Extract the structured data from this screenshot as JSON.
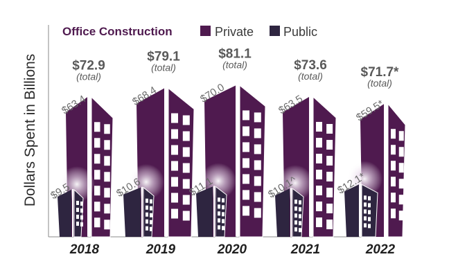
{
  "chart_data": {
    "type": "bar",
    "title": "Office Construction",
    "xlabel": "",
    "ylabel": "Dollars Spent in Billions",
    "ylim": [
      0,
      85
    ],
    "grid": false,
    "legend": {
      "placement": "top",
      "entries": [
        {
          "name": "Private",
          "color": "#4f1a4f"
        },
        {
          "name": "Public",
          "color": "#2e2540"
        }
      ]
    },
    "categories": [
      "2018",
      "2019",
      "2020",
      "2021",
      "2022"
    ],
    "series": [
      {
        "name": "Private",
        "color": "#4f1a4f",
        "values": [
          63.4,
          68.4,
          70.0,
          63.5,
          59.5
        ],
        "labels": [
          "$63.4",
          "$68.4",
          "$70.0",
          "$63.5",
          "$59.5*"
        ]
      },
      {
        "name": "Public",
        "color": "#2e2540",
        "values": [
          9.5,
          10.6,
          11.1,
          10.1,
          12.1
        ],
        "labels": [
          "$9.5",
          "$10.6",
          "$11.1",
          "$10.1^",
          "$12.1*"
        ]
      }
    ],
    "totals": [
      72.9,
      79.1,
      81.1,
      73.6,
      71.7
    ],
    "total_labels": [
      "$72.9",
      "$79.1",
      "$81.1",
      "$73.6",
      "$71.7*"
    ],
    "total_sublabel": "(total)"
  }
}
